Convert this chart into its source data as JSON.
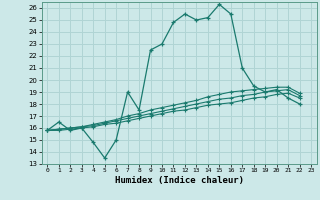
{
  "xlabel": "Humidex (Indice chaleur)",
  "bg_color": "#cce8e8",
  "grid_color": "#b0d4d4",
  "line_color": "#1a7a6e",
  "xlim": [
    -0.5,
    23.5
  ],
  "ylim": [
    13,
    26.5
  ],
  "xticks": [
    0,
    1,
    2,
    3,
    4,
    5,
    6,
    7,
    8,
    9,
    10,
    11,
    12,
    13,
    14,
    15,
    16,
    17,
    18,
    19,
    20,
    21,
    22,
    23
  ],
  "yticks": [
    13,
    14,
    15,
    16,
    17,
    18,
    19,
    20,
    21,
    22,
    23,
    24,
    25,
    26
  ],
  "series0": [
    15.8,
    16.5,
    15.8,
    16.0,
    14.8,
    13.5,
    15.0,
    19.0,
    17.5,
    22.5,
    23.0,
    24.8,
    25.5,
    25.0,
    25.2,
    26.3,
    25.5,
    21.0,
    19.5,
    19.0,
    19.2,
    18.5,
    18.0
  ],
  "series1": [
    15.8,
    15.8,
    15.9,
    16.0,
    16.1,
    16.3,
    16.4,
    16.6,
    16.8,
    17.0,
    17.2,
    17.4,
    17.5,
    17.7,
    17.9,
    18.0,
    18.1,
    18.3,
    18.5,
    18.6,
    18.8,
    18.9,
    18.5
  ],
  "series2": [
    15.8,
    15.9,
    16.0,
    16.1,
    16.2,
    16.4,
    16.6,
    16.8,
    17.0,
    17.2,
    17.4,
    17.6,
    17.8,
    18.0,
    18.2,
    18.4,
    18.5,
    18.7,
    18.8,
    19.0,
    19.1,
    19.2,
    18.7
  ],
  "series3": [
    15.8,
    15.9,
    16.0,
    16.1,
    16.3,
    16.5,
    16.7,
    17.0,
    17.2,
    17.5,
    17.7,
    17.9,
    18.1,
    18.3,
    18.6,
    18.8,
    19.0,
    19.1,
    19.2,
    19.3,
    19.4,
    19.4,
    18.9
  ]
}
